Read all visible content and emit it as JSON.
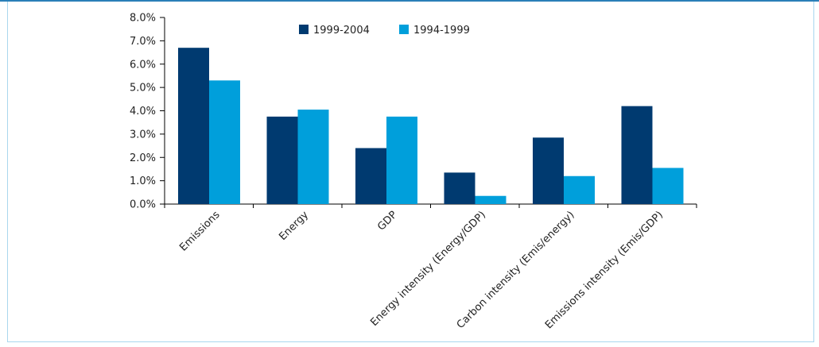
{
  "chart_data": {
    "type": "bar",
    "title": "",
    "xlabel": "",
    "ylabel": "",
    "ylim": [
      0,
      8
    ],
    "yticks": [
      "0.0%",
      "1.0%",
      "2.0%",
      "3.0%",
      "4.0%",
      "5.0%",
      "6.0%",
      "7.0%",
      "8.0%"
    ],
    "categories": [
      "Emissions",
      "Energy",
      "GDP",
      "Energy intensity (Energy/GDP)",
      "Carbon intensity (Emis/energy)",
      "Emissions intensity (Emis/GDP)"
    ],
    "series": [
      {
        "name": "1999-2004",
        "color": "#003a70",
        "values": [
          6.7,
          3.75,
          2.4,
          1.35,
          2.85,
          4.2
        ]
      },
      {
        "name": "1994-1999",
        "color": "#009fdb",
        "values": [
          5.3,
          4.05,
          3.75,
          0.35,
          1.2,
          1.55
        ]
      }
    ],
    "grid": false,
    "legend_position": "top"
  }
}
